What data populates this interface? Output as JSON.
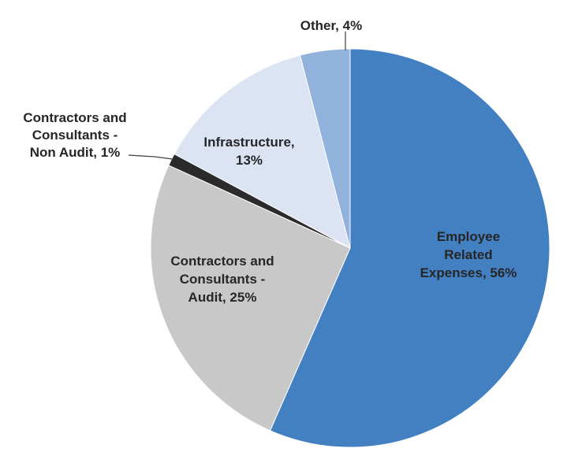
{
  "chart_data": {
    "type": "pie",
    "title": "",
    "start": "12 o'clock",
    "direction": "clockwise",
    "slices": [
      {
        "label": "Employee Related Expenses",
        "value": 56,
        "display": "56%",
        "color": "#4380C2"
      },
      {
        "label": "Contractors and Consultants - Audit",
        "value": 25,
        "display": "25%",
        "color": "#C8C8C8"
      },
      {
        "label": "Contractors and Consultants - Non Audit",
        "value": 1,
        "display": "1%",
        "color": "#2B2B2B"
      },
      {
        "label": "Infrastructure",
        "value": 13,
        "display": "13%",
        "color": "#DCE4F3"
      },
      {
        "label": "Other",
        "value": 4,
        "display": "4%",
        "color": "#90B2DC"
      }
    ],
    "data_labels": [
      {
        "lines": [
          "Employee",
          "Related",
          "Expenses, 56%"
        ]
      },
      {
        "lines": [
          "Contractors and",
          "Consultants -",
          "Audit, 25%"
        ]
      },
      {
        "lines": [
          "Contractors and",
          "Consultants -",
          "Non Audit, 1%"
        ]
      },
      {
        "lines": [
          "Infrastructure,",
          "13%"
        ]
      },
      {
        "lines": [
          "Other, 4%"
        ]
      }
    ]
  }
}
